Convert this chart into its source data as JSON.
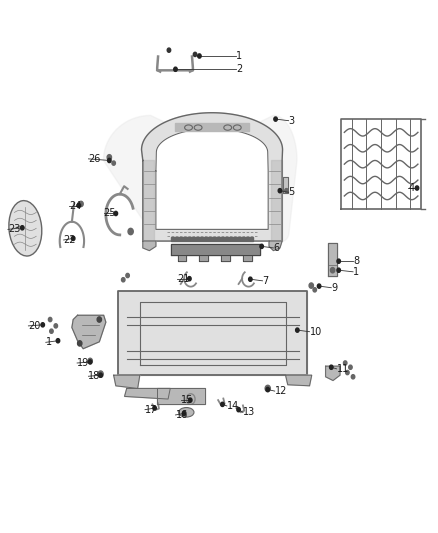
{
  "background_color": "#ffffff",
  "figsize": [
    4.38,
    5.33
  ],
  "dpi": 100,
  "label_fontsize": 7.0,
  "label_color": "#1a1a1a",
  "line_color": "#333333",
  "line_width": 0.6,
  "leader_labels": [
    {
      "num": "1",
      "dot": [
        0.455,
        0.897
      ],
      "txt": [
        0.54,
        0.897
      ]
    },
    {
      "num": "2",
      "dot": [
        0.4,
        0.872
      ],
      "txt": [
        0.54,
        0.872
      ]
    },
    {
      "num": "3",
      "dot": [
        0.63,
        0.778
      ],
      "txt": [
        0.66,
        0.775
      ]
    },
    {
      "num": "4",
      "dot": [
        0.955,
        0.648
      ],
      "txt": [
        0.935,
        0.648
      ]
    },
    {
      "num": "5",
      "dot": [
        0.64,
        0.643
      ],
      "txt": [
        0.66,
        0.64
      ]
    },
    {
      "num": "6",
      "dot": [
        0.598,
        0.538
      ],
      "txt": [
        0.625,
        0.535
      ]
    },
    {
      "num": "7",
      "dot": [
        0.572,
        0.476
      ],
      "txt": [
        0.6,
        0.473
      ]
    },
    {
      "num": "8",
      "dot": [
        0.775,
        0.51
      ],
      "txt": [
        0.808,
        0.51
      ]
    },
    {
      "num": "1",
      "dot": [
        0.775,
        0.493
      ],
      "txt": [
        0.808,
        0.49
      ]
    },
    {
      "num": "9",
      "dot": [
        0.73,
        0.463
      ],
      "txt": [
        0.758,
        0.46
      ]
    },
    {
      "num": "10",
      "dot": [
        0.68,
        0.38
      ],
      "txt": [
        0.708,
        0.377
      ]
    },
    {
      "num": "11",
      "dot": [
        0.758,
        0.31
      ],
      "txt": [
        0.77,
        0.307
      ]
    },
    {
      "num": "12",
      "dot": [
        0.612,
        0.268
      ],
      "txt": [
        0.628,
        0.265
      ]
    },
    {
      "num": "13",
      "dot": [
        0.545,
        0.23
      ],
      "txt": [
        0.555,
        0.225
      ]
    },
    {
      "num": "14",
      "dot": [
        0.508,
        0.24
      ],
      "txt": [
        0.518,
        0.237
      ]
    },
    {
      "num": "15",
      "dot": [
        0.434,
        0.248
      ],
      "txt": [
        0.413,
        0.248
      ]
    },
    {
      "num": "16",
      "dot": [
        0.42,
        0.223
      ],
      "txt": [
        0.4,
        0.22
      ]
    },
    {
      "num": "17",
      "dot": [
        0.352,
        0.233
      ],
      "txt": [
        0.33,
        0.23
      ]
    },
    {
      "num": "18",
      "dot": [
        0.228,
        0.295
      ],
      "txt": [
        0.2,
        0.293
      ]
    },
    {
      "num": "19",
      "dot": [
        0.204,
        0.32
      ],
      "txt": [
        0.174,
        0.318
      ]
    },
    {
      "num": "1",
      "dot": [
        0.13,
        0.36
      ],
      "txt": [
        0.102,
        0.357
      ]
    },
    {
      "num": "20",
      "dot": [
        0.095,
        0.39
      ],
      "txt": [
        0.062,
        0.388
      ]
    },
    {
      "num": "21",
      "dot": [
        0.432,
        0.477
      ],
      "txt": [
        0.403,
        0.477
      ]
    },
    {
      "num": "22",
      "dot": [
        0.165,
        0.553
      ],
      "txt": [
        0.143,
        0.55
      ]
    },
    {
      "num": "23",
      "dot": [
        0.048,
        0.573
      ],
      "txt": [
        0.015,
        0.57
      ]
    },
    {
      "num": "24",
      "dot": [
        0.178,
        0.615
      ],
      "txt": [
        0.155,
        0.615
      ]
    },
    {
      "num": "25",
      "dot": [
        0.263,
        0.6
      ],
      "txt": [
        0.235,
        0.6
      ]
    },
    {
      "num": "26",
      "dot": [
        0.248,
        0.7
      ],
      "txt": [
        0.2,
        0.703
      ]
    }
  ]
}
